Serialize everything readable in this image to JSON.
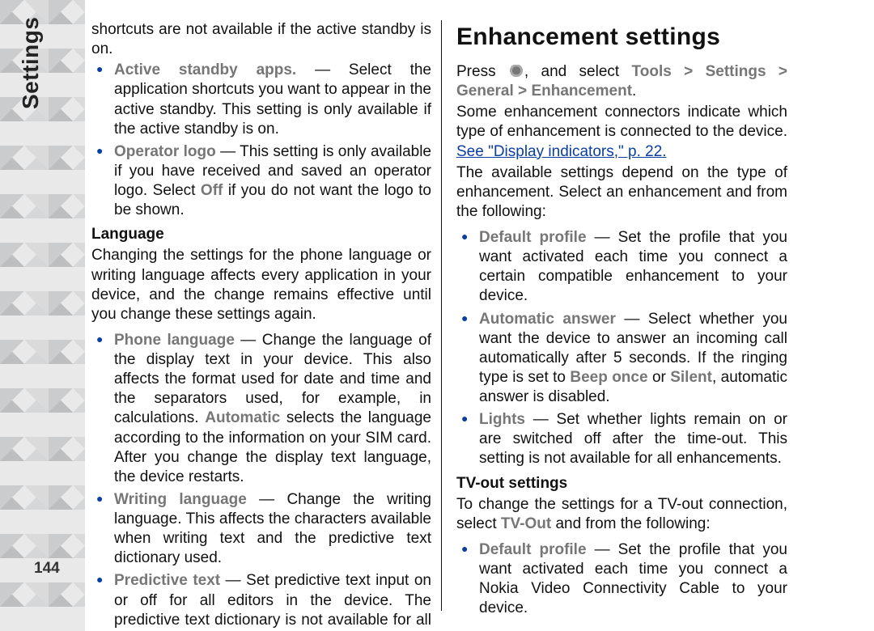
{
  "side_label": "Settings",
  "page_number": "144",
  "left": {
    "intro_cont": "shortcuts are not available if the active standby is on.",
    "bullets1": [
      {
        "term": "Active standby apps.",
        "text": " — Select the application shortcuts you want to appear in the active standby. This setting is only available if the active standby is on."
      },
      {
        "term": "Operator logo",
        "text": " — This setting is only available if you have received and saved an operator logo. Select ",
        "term2": "Off",
        "tail": " if you do not want the logo to be shown."
      }
    ],
    "language_head": "Language",
    "language_para": "Changing the settings for the phone language or writing language affects every application in your device, and the change remains effective until you change these settings again.",
    "bullets2": [
      {
        "term": "Phone language",
        "pre": " — Change the language of the display text in your device. This also affects the format used for date and time and the separators used, for example, in calculations. ",
        "term2": "Automatic",
        "tail": " selects the language according to the information on your SIM card. After you change the display text language, the device restarts."
      },
      {
        "term": "Writing language",
        "text": " — Change the writing language. This affects the characters available when writing text and the predictive text dictionary used."
      },
      {
        "term": "Predictive text",
        "text": " — Set predictive text input on or off for all editors in the device. The predictive text dictionary is not available for all languages."
      }
    ]
  },
  "right": {
    "title": "Enhancement settings",
    "press_pre": "Press ",
    "press_mid": ", and select ",
    "path1": "Tools",
    "gt": ">",
    "path2": "Settings",
    "path3": "General",
    "path4": "Enhancement",
    "some_para": "Some enhancement connectors indicate which type of enhancement is connected to the device. ",
    "link_text": "See \"Display indicators,\" p. 22.",
    "avail_para": "The available settings depend on the type of enhancement. Select an enhancement and from the following:",
    "bullets1": [
      {
        "term": "Default profile",
        "text": " — Set the profile that you want activated each time you connect a certain compatible enhancement to your device."
      },
      {
        "term": "Automatic answer",
        "pre": " — Select whether you want the device to answer an incoming call automatically after 5 seconds. If the ringing type is set to ",
        "term2": "Beep once",
        "mid": " or ",
        "term3": "Silent",
        "tail": ", automatic answer is disabled."
      },
      {
        "term": "Lights",
        "text": " — Set whether lights remain on or are switched off after the time-out. This setting is not available for all enhancements."
      }
    ],
    "tvout_head": "TV-out settings",
    "tvout_para_pre": "To change the settings for a TV-out connection, select ",
    "tvout_term": "TV-Out",
    "tvout_para_tail": " and from the following:",
    "bullets2": [
      {
        "term": "Default profile",
        "text": " — Set the profile that you want activated each time you connect a Nokia Video Connectivity Cable to your device."
      }
    ]
  }
}
